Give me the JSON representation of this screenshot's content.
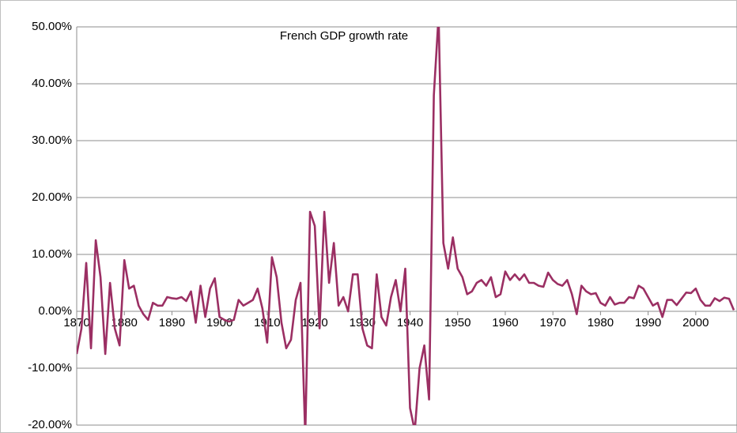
{
  "chart_data": {
    "type": "line",
    "title": "French GDP growth rate",
    "color": "#9b2f63",
    "grid": true,
    "x": [
      1870,
      1871,
      1872,
      1873,
      1874,
      1875,
      1876,
      1877,
      1878,
      1879,
      1880,
      1881,
      1882,
      1883,
      1884,
      1885,
      1886,
      1887,
      1888,
      1889,
      1890,
      1891,
      1892,
      1893,
      1894,
      1895,
      1896,
      1897,
      1898,
      1899,
      1900,
      1901,
      1902,
      1903,
      1904,
      1905,
      1906,
      1907,
      1908,
      1909,
      1910,
      1911,
      1912,
      1913,
      1914,
      1915,
      1916,
      1917,
      1918,
      1919,
      1920,
      1921,
      1922,
      1923,
      1924,
      1925,
      1926,
      1927,
      1928,
      1929,
      1930,
      1931,
      1932,
      1933,
      1934,
      1935,
      1936,
      1937,
      1938,
      1939,
      1940,
      1941,
      1942,
      1943,
      1944,
      1945,
      1946,
      1947,
      1948,
      1949,
      1950,
      1951,
      1952,
      1953,
      1954,
      1955,
      1956,
      1957,
      1958,
      1959,
      1960,
      1961,
      1962,
      1963,
      1964,
      1965,
      1966,
      1967,
      1968,
      1969,
      1970,
      1971,
      1972,
      1973,
      1974,
      1975,
      1976,
      1977,
      1978,
      1979,
      1980,
      1981,
      1982,
      1983,
      1984,
      1985,
      1986,
      1987,
      1988,
      1989,
      1990,
      1991,
      1992,
      1993,
      1994,
      1995,
      1996,
      1997,
      1998,
      1999,
      2000,
      2001,
      2002,
      2003,
      2004,
      2005,
      2006,
      2007,
      2008
    ],
    "values": [
      -7.5,
      -3,
      8.5,
      -6.5,
      12.5,
      6,
      -7.5,
      5,
      -3,
      -6,
      9,
      4,
      4.5,
      1,
      -0.5,
      -1.5,
      1.5,
      1,
      1,
      2.5,
      2.3,
      2.2,
      2.5,
      1.8,
      3.5,
      -2,
      4.5,
      -1,
      4,
      5.8,
      -1,
      -1.5,
      -1.8,
      -1.5,
      2,
      1,
      1.5,
      2,
      4,
      0.5,
      -5.5,
      9.5,
      6,
      -2,
      -6.5,
      -5,
      2,
      5,
      -22,
      17.5,
      15,
      -3,
      17.5,
      5,
      12,
      1,
      2.5,
      0,
      6.5,
      6.5,
      -3,
      -6,
      -6.5,
      6.5,
      -1,
      -2.5,
      2.5,
      5.5,
      0,
      7.5,
      -17,
      -21,
      -10,
      -6,
      -15.5,
      38,
      52,
      12,
      7.5,
      13,
      7.5,
      6,
      3,
      3.5,
      5,
      5.5,
      4.5,
      6,
      2.5,
      3,
      7,
      5.5,
      6.5,
      5.5,
      6.5,
      5,
      5,
      4.5,
      4.3,
      6.8,
      5.5,
      4.8,
      4.5,
      5.5,
      3,
      -0.5,
      4.5,
      3.5,
      3,
      3.2,
      1.5,
      1,
      2.5,
      1.2,
      1.5,
      1.5,
      2.5,
      2.3,
      4.5,
      4,
      2.5,
      1,
      1.5,
      -1,
      2,
      2,
      1.1,
      2.2,
      3.3,
      3.2,
      4,
      2,
      1,
      1,
      2.3,
      1.8,
      2.4,
      2.2,
      0.2
    ],
    "xlim": [
      1870,
      2008
    ],
    "xticks": [
      1870,
      1880,
      1890,
      1900,
      1910,
      1920,
      1930,
      1940,
      1950,
      1960,
      1970,
      1980,
      1990,
      2000
    ],
    "ylim": [
      -20,
      50
    ],
    "yticks": [
      {
        "value": -20,
        "label": "-20.00%"
      },
      {
        "value": -10,
        "label": "-10.00%"
      },
      {
        "value": 0,
        "label": "0.00%"
      },
      {
        "value": 10,
        "label": "10.00%"
      },
      {
        "value": 20,
        "label": "20.00%"
      },
      {
        "value": 30,
        "label": "30.00%"
      },
      {
        "value": 40,
        "label": "40.00%"
      },
      {
        "value": 50,
        "label": "50.00%"
      }
    ]
  }
}
